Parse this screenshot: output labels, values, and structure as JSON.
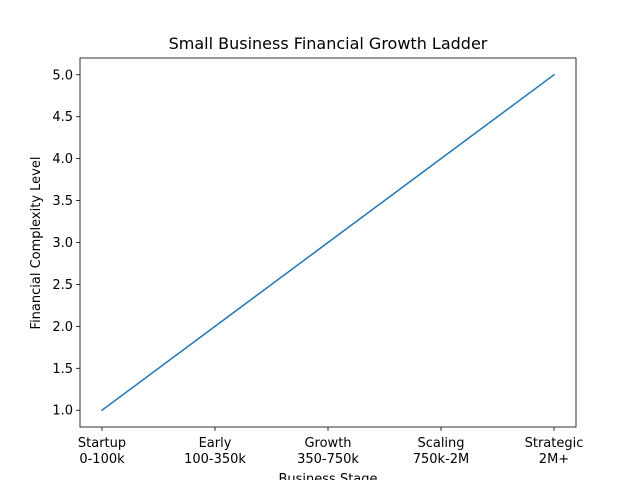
{
  "chart_data": {
    "type": "line",
    "title": "Small Business Financial Growth Ladder",
    "xlabel": "Business Stage",
    "ylabel": "Financial Complexity Level",
    "categories": [
      [
        "Startup",
        "0-100k"
      ],
      [
        "Early",
        "100-350k"
      ],
      [
        "Growth",
        "350-750k"
      ],
      [
        "Scaling",
        "750k-2M"
      ],
      [
        "Strategic",
        "2M+"
      ]
    ],
    "series": [
      {
        "values": [
          1,
          2,
          3,
          4,
          5
        ],
        "color": "#1f77b4"
      }
    ],
    "ylim": [
      0.8,
      5.2
    ],
    "yticks": [
      "1.0",
      "1.5",
      "2.0",
      "2.5",
      "3.0",
      "3.5",
      "4.0",
      "4.5",
      "5.0"
    ],
    "grid": false,
    "legend": "none"
  }
}
